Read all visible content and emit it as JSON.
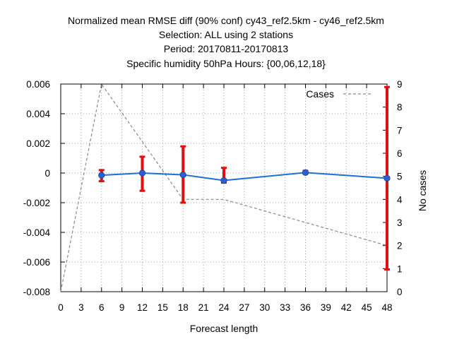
{
  "chart_data": {
    "type": "line",
    "title_lines": [
      "Normalized mean RMSE diff (90% conf) cy43_ref2.5km - cy46_ref2.5km",
      "Selection: ALL using      2 stations",
      "Period: 20170811-20170813",
      "Specific humidity 50hPa   Hours: {00,06,12,18}"
    ],
    "xlabel": "Forecast length",
    "ylabel_right": "No cases",
    "xlim": [
      0,
      48
    ],
    "ylim": [
      -0.008,
      0.006
    ],
    "y2lim": [
      0,
      9
    ],
    "x_ticks": [
      "0",
      "3",
      "6",
      "9",
      "12",
      "15",
      "18",
      "21",
      "24",
      "27",
      "30",
      "33",
      "36",
      "39",
      "42",
      "45",
      "48"
    ],
    "y_ticks": [
      "0.006",
      "0.004",
      "0.002",
      "0",
      "-0.002",
      "-0.004",
      "-0.006",
      "-0.008"
    ],
    "y2_ticks": [
      "0",
      "1",
      "2",
      "3",
      "4",
      "5",
      "6",
      "7",
      "8",
      "9"
    ],
    "grid": true,
    "legend_position": "top-right",
    "series": [
      {
        "x": [
          6,
          12,
          18,
          24,
          36,
          48
        ],
        "values": [
          -0.00015,
          0.0,
          -0.00012,
          -0.0005,
          3e-05,
          -0.00035
        ],
        "err_low": [
          -0.00055,
          -0.0012,
          -0.002,
          -0.00065,
          -5e-05,
          -0.0065
        ],
        "err_high": [
          0.0002,
          0.0011,
          0.0018,
          0.00035,
          0.00015,
          0.0058
        ],
        "color": "#1e6fd9",
        "error_color": "#e01010"
      },
      {
        "name": "Cases",
        "axis": "right",
        "x": [
          0,
          6,
          18,
          24,
          36,
          48
        ],
        "values": [
          0,
          9,
          4,
          4,
          3,
          2
        ],
        "color": "#888888",
        "style": "dashed"
      }
    ]
  }
}
